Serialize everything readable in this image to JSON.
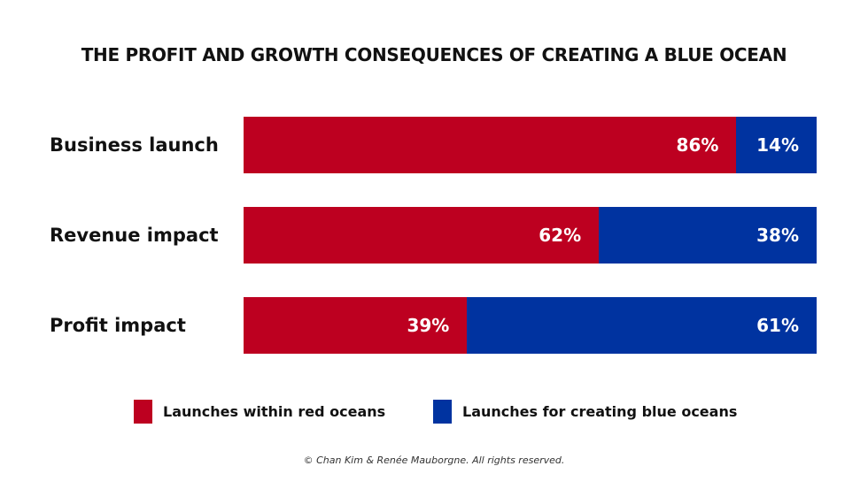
{
  "chart_data": {
    "type": "bar",
    "stacked": true,
    "orientation": "horizontal",
    "title": "THE PROFIT AND GROWTH CONSEQUENCES OF CREATING A BLUE OCEAN",
    "categories": [
      "Business launch",
      "Revenue impact",
      "Profit impact"
    ],
    "series": [
      {
        "name": "Launches within red oceans",
        "values": [
          86,
          62,
          39
        ],
        "labels": [
          "86%",
          "62%",
          "39%"
        ],
        "color": "#bd0020"
      },
      {
        "name": "Launches for creating blue oceans",
        "values": [
          14,
          38,
          61
        ],
        "labels": [
          "14%",
          "38%",
          "61%"
        ],
        "color": "#0033a0"
      }
    ],
    "xlim": [
      0,
      100
    ],
    "legend": "bottom",
    "footer": "© Chan Kim & Renée Mauborgne. All rights reserved."
  }
}
